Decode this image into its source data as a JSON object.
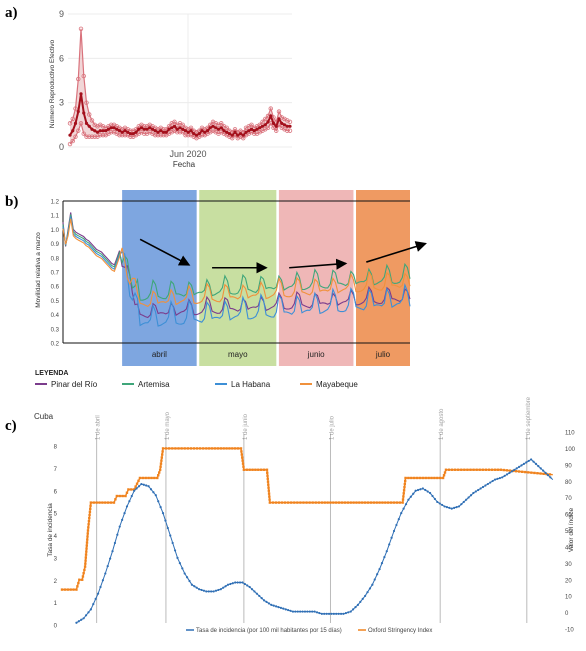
{
  "panels": {
    "a": "a)",
    "b": "b)",
    "c": "c)"
  },
  "chart_data": [
    {
      "id": "a",
      "type": "line",
      "ylabel": "Número Reproductivo Efectivo",
      "xlabel": "Fecha",
      "x_tick_label": "Jun 2020",
      "yticks": [
        0,
        3,
        6,
        9
      ],
      "ylim": [
        0,
        9
      ],
      "x": [
        0,
        2,
        4,
        6,
        8,
        10,
        12,
        14,
        16,
        18,
        20,
        22,
        24,
        26,
        28,
        30,
        32,
        34,
        36,
        38,
        40,
        42,
        44,
        46,
        48,
        50,
        52,
        54,
        56,
        58,
        60,
        62,
        64,
        66,
        68,
        70,
        72,
        74,
        76,
        78,
        80,
        82,
        84,
        86,
        88,
        90,
        92,
        94,
        96,
        98,
        100,
        102,
        104,
        106,
        108,
        110,
        112,
        114,
        116,
        118,
        120,
        122,
        124,
        126,
        128,
        130,
        132,
        134,
        136,
        138,
        140,
        142,
        144,
        146,
        148,
        150,
        152,
        154,
        156,
        158,
        160
      ],
      "series": [
        {
          "role": "upper",
          "values": [
            1.6,
            1.9,
            2.6,
            4.6,
            8.0,
            4.8,
            3.0,
            2.2,
            1.8,
            1.5,
            1.4,
            1.5,
            1.4,
            1.3,
            1.4,
            1.5,
            1.5,
            1.4,
            1.3,
            1.2,
            1.3,
            1.2,
            1.1,
            1.1,
            1.2,
            1.4,
            1.5,
            1.4,
            1.4,
            1.5,
            1.4,
            1.3,
            1.2,
            1.3,
            1.2,
            1.2,
            1.4,
            1.6,
            1.7,
            1.5,
            1.6,
            1.5,
            1.3,
            1.2,
            1.3,
            1.1,
            1.0,
            1.1,
            1.3,
            1.2,
            1.3,
            1.5,
            1.7,
            1.6,
            1.5,
            1.6,
            1.4,
            1.3,
            1.1,
            1.0,
            1.2,
            1.0,
            1.1,
            1.0,
            1.3,
            1.4,
            1.5,
            1.3,
            1.4,
            1.5,
            1.7,
            1.9,
            2.1,
            2.6,
            2.0,
            1.7,
            2.4,
            2.0,
            1.9,
            1.8,
            1.7
          ]
        },
        {
          "role": "mean",
          "values": [
            0.8,
            1.1,
            1.6,
            2.4,
            3.6,
            2.3,
            1.6,
            1.4,
            1.2,
            1.1,
            1.0,
            1.1,
            1.1,
            1.1,
            1.2,
            1.3,
            1.3,
            1.2,
            1.1,
            1.0,
            1.1,
            1.0,
            0.9,
            0.9,
            1.0,
            1.2,
            1.3,
            1.2,
            1.2,
            1.3,
            1.2,
            1.1,
            1.0,
            1.1,
            1.0,
            1.0,
            1.2,
            1.3,
            1.4,
            1.2,
            1.3,
            1.2,
            1.1,
            1.0,
            1.1,
            0.9,
            0.8,
            0.9,
            1.1,
            1.0,
            1.1,
            1.3,
            1.4,
            1.3,
            1.2,
            1.3,
            1.1,
            1.0,
            0.9,
            0.8,
            1.0,
            0.8,
            0.9,
            0.8,
            1.0,
            1.1,
            1.2,
            1.1,
            1.2,
            1.3,
            1.4,
            1.5,
            1.7,
            2.1,
            1.6,
            1.4,
            1.9,
            1.6,
            1.5,
            1.4,
            1.4
          ]
        },
        {
          "role": "lower",
          "values": [
            0.2,
            0.4,
            0.7,
            1.1,
            1.6,
            0.9,
            0.7,
            0.7,
            0.7,
            0.7,
            0.7,
            0.8,
            0.8,
            0.8,
            0.9,
            1.0,
            1.0,
            0.9,
            0.8,
            0.8,
            0.8,
            0.8,
            0.7,
            0.7,
            0.8,
            0.9,
            1.0,
            0.9,
            0.9,
            1.0,
            0.9,
            0.8,
            0.8,
            0.8,
            0.8,
            0.8,
            0.9,
            1.0,
            1.1,
            1.0,
            1.0,
            1.0,
            0.8,
            0.8,
            0.8,
            0.7,
            0.6,
            0.7,
            0.8,
            0.8,
            0.9,
            1.0,
            1.1,
            1.0,
            0.9,
            1.0,
            0.9,
            0.8,
            0.7,
            0.6,
            0.8,
            0.6,
            0.7,
            0.6,
            0.8,
            0.9,
            1.0,
            0.9,
            0.9,
            1.0,
            1.1,
            1.2,
            1.3,
            1.6,
            1.3,
            1.1,
            1.5,
            1.3,
            1.2,
            1.1,
            1.1
          ]
        }
      ],
      "colors": {
        "mean": "#a4101c",
        "band": "#e6b4b7",
        "band_line": "#d9727c"
      },
      "grid": true
    },
    {
      "id": "b",
      "type": "line",
      "ylabel": "Movilidad relativa a marzo",
      "ylim": [
        0.2,
        1.2
      ],
      "yticks": [
        "0.2",
        "0.3",
        "0.4",
        "0.5",
        "0.6",
        "0.7",
        "0.8",
        "0.9",
        "1.0",
        "1.1",
        "1.2"
      ],
      "bands": [
        {
          "label": "abril",
          "color": "#7ea6e0",
          "range": [
            23,
            52
          ]
        },
        {
          "label": "mayo",
          "color": "#c8dfa1",
          "range": [
            53,
            83
          ]
        },
        {
          "label": "junio",
          "color": "#efb7b7",
          "range": [
            84,
            113
          ]
        },
        {
          "label": "julio",
          "color": "#ef9a62",
          "range": [
            114,
            135
          ]
        }
      ],
      "arrows": [
        {
          "x1": 30,
          "y1": 0.93,
          "x2": 49,
          "y2": 0.75
        },
        {
          "x1": 58,
          "y1": 0.73,
          "x2": 79,
          "y2": 0.73
        },
        {
          "x1": 88,
          "y1": 0.73,
          "x2": 110,
          "y2": 0.76
        },
        {
          "x1": 118,
          "y1": 0.77,
          "x2": 141,
          "y2": 0.9
        }
      ],
      "legend_title": "LEYENDA",
      "series": [
        {
          "name": "Pinar del Río",
          "color": "#7b3c8c",
          "base": 0.42,
          "slope": 0.0011,
          "amp": 0.06
        },
        {
          "name": "Artemisa",
          "color": "#3fa67a",
          "base": 0.55,
          "slope": 0.0012,
          "amp": 0.07
        },
        {
          "name": "La Habana",
          "color": "#3d8fd6",
          "base": 0.37,
          "slope": 0.0014,
          "amp": 0.09
        },
        {
          "name": "Mayabeque",
          "color": "#f0913c",
          "base": 0.5,
          "slope": 0.0013,
          "amp": 0.07
        }
      ],
      "legend_placement": "bottom"
    },
    {
      "id": "c",
      "type": "line",
      "title": "Cuba",
      "y1label": "Tasa de incidencia",
      "y2label": "Valor del índice",
      "y1lim": [
        0,
        8
      ],
      "y2lim": [
        -10,
        110
      ],
      "y1ticks": [
        0,
        1,
        2,
        3,
        4,
        5,
        6,
        7,
        8
      ],
      "y2ticks": [
        -10,
        0,
        10,
        20,
        30,
        40,
        50,
        60,
        70,
        80,
        90,
        100,
        110
      ],
      "series": [
        {
          "name": "Tasa de incidencia (por 100 mil habitantes por 15 días)",
          "color": "#2f6fb5",
          "x": [
            10,
            15,
            20,
            25,
            30,
            35,
            40,
            45,
            50,
            55,
            60,
            65,
            70,
            75,
            80,
            85,
            90,
            95,
            100,
            105,
            110,
            115,
            120,
            125,
            130,
            135,
            140,
            145,
            150,
            155,
            160,
            165,
            170,
            175,
            180,
            185,
            190,
            195,
            200,
            205,
            210,
            215,
            220,
            225,
            230,
            235,
            240,
            245,
            250,
            255,
            260,
            265,
            270,
            275,
            280,
            285,
            290,
            295,
            300,
            305,
            310,
            315,
            320,
            325,
            330,
            335,
            340
          ],
          "values": [
            0.1,
            0.3,
            0.7,
            1.4,
            2.3,
            3.3,
            4.4,
            5.3,
            6.0,
            6.3,
            6.2,
            5.8,
            5.0,
            4.0,
            3.0,
            2.3,
            1.8,
            1.6,
            1.5,
            1.5,
            1.6,
            1.8,
            1.9,
            1.9,
            1.7,
            1.4,
            1.1,
            0.9,
            0.8,
            0.7,
            0.6,
            0.6,
            0.6,
            0.6,
            0.5,
            0.5,
            0.5,
            0.5,
            0.6,
            0.9,
            1.3,
            1.8,
            2.5,
            3.3,
            4.2,
            5.0,
            5.6,
            6.0,
            6.1,
            5.9,
            5.5,
            5.3,
            5.2,
            5.3,
            5.6,
            5.9,
            6.1,
            6.3,
            6.5,
            6.6,
            6.8,
            7.0,
            7.2,
            7.4,
            7.1,
            6.8,
            6.5
          ]
        },
        {
          "name": "Oxford Stringency Index",
          "color": "#f0831e",
          "x": [
            0,
            10,
            12,
            14,
            16,
            18,
            20,
            30,
            36,
            38,
            40,
            44,
            46,
            50,
            54,
            56,
            60,
            66,
            68,
            70,
            100,
            102,
            104,
            120,
            124,
            126,
            140,
            142,
            144,
            180,
            196,
            198,
            200,
            220,
            236,
            238,
            240,
            260,
            264,
            266,
            300,
            302,
            304,
            340
          ],
          "values": [
            14,
            14,
            20,
            20,
            28,
            50,
            67,
            67,
            67,
            71,
            71,
            71,
            75,
            75,
            82,
            82,
            82,
            82,
            87,
            100,
            100,
            100,
            100,
            100,
            100,
            87,
            87,
            87,
            67,
            67,
            67,
            67,
            67,
            67,
            67,
            82,
            82,
            82,
            82,
            87,
            87,
            87,
            87,
            84
          ]
        }
      ],
      "vlines": [
        24,
        72,
        126,
        186,
        262,
        322
      ],
      "vline_labels": [
        "1 de abril",
        "1 de mayo",
        "1 de junio",
        "1 de julio",
        "1 de agosto",
        "1 de septiembre"
      ],
      "xlim": [
        0,
        345
      ],
      "legend_placement": "bottom-center"
    }
  ]
}
